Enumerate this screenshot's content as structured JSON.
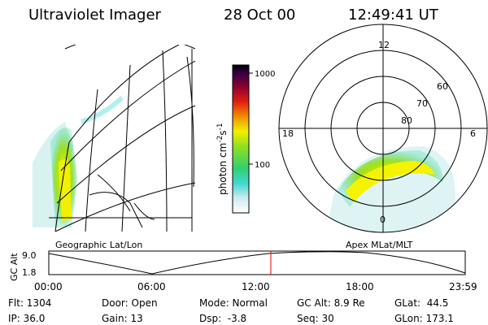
{
  "header": {
    "instrument": "Ultraviolet Imager",
    "date": "28 Oct 00",
    "time": "12:49:41 UT"
  },
  "colorbar": {
    "ticks": [
      "1000",
      "100"
    ],
    "unit": [
      "photon cm",
      "-2",
      "s",
      "-1"
    ]
  },
  "polar": {
    "mlt_labels": [
      "12",
      "18",
      "6",
      "0"
    ],
    "lat_labels": [
      "60",
      "70",
      "80"
    ]
  },
  "panel_labels": [
    "Geographic Lat/Lon",
    "Apex MLat/MLT"
  ],
  "altitude": {
    "label": "GC Alt",
    "ticks": [
      "9.0",
      "1.8"
    ],
    "times": [
      "00:00",
      "06:00",
      "12:00",
      "18:00",
      "23:59"
    ]
  },
  "info": [
    [
      "Flt: 1304",
      "IP: 36.0"
    ],
    [
      "Door: Open",
      "Gain: 13"
    ],
    [
      "Mode: Normal",
      "Dsp:  -3.8"
    ],
    [
      "GC Alt: 8.9 Re",
      "Seq: 30"
    ],
    [
      "GLat:  44.5",
      "GLon: 173.1"
    ]
  ]
}
